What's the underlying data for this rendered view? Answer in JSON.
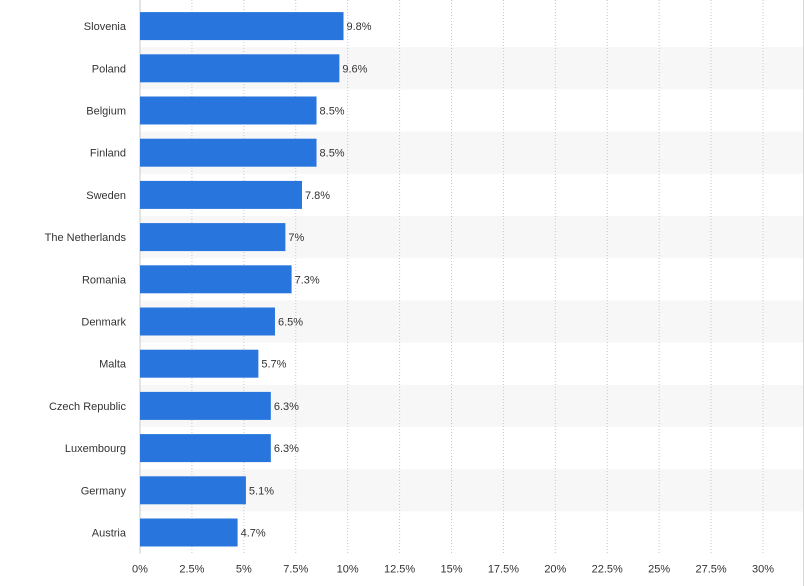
{
  "chart_data": {
    "type": "bar",
    "orientation": "horizontal",
    "categories": [
      "Slovenia",
      "Poland",
      "Belgium",
      "Finland",
      "Sweden",
      "The Netherlands",
      "Romania",
      "Denmark",
      "Malta",
      "Czech Republic",
      "Luxembourg",
      "Germany",
      "Austria"
    ],
    "values": [
      9.8,
      9.6,
      8.5,
      8.5,
      7.8,
      7,
      7.3,
      6.5,
      5.7,
      6.3,
      6.3,
      5.1,
      4.7
    ],
    "data_labels": [
      "9.8%",
      "9.6%",
      "8.5%",
      "8.5%",
      "7.8%",
      "7%",
      "7.3%",
      "6.5%",
      "5.7%",
      "6.3%",
      "6.3%",
      "5.1%",
      "4.7%"
    ],
    "x_ticks": [
      0,
      2.5,
      5,
      7.5,
      10,
      12.5,
      15,
      17.5,
      20,
      22.5,
      25,
      27.5,
      30
    ],
    "x_tick_labels": [
      "0%",
      "2.5%",
      "5%",
      "7.5%",
      "10%",
      "12.5%",
      "15%",
      "17.5%",
      "20%",
      "22.5%",
      "25%",
      "27.5%",
      "30%"
    ],
    "xlim": [
      0,
      30
    ],
    "title": "",
    "xlabel": "",
    "ylabel": "",
    "grid": "vertical dashed",
    "legend": "none",
    "bar_color": "#2876dd",
    "alt_row_color": "#f7f7f7",
    "grid_color": "#c8c8c8",
    "text_color": "#333333"
  }
}
